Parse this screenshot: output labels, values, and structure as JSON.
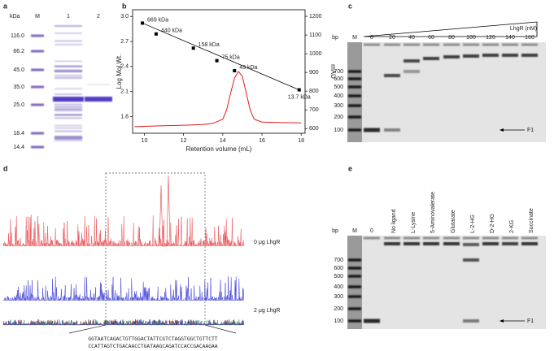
{
  "panels": {
    "a": {
      "label": "a",
      "unit": "kDa",
      "lanes": [
        "M",
        "1",
        "2"
      ],
      "ladder": [
        "116.0",
        "66.2",
        "45.0",
        "35.0",
        "25.0",
        "18.4",
        "14.4"
      ]
    },
    "c": {
      "label": "c",
      "bp": "bp",
      "ladder_lane": "M",
      "titrant": "LhgR (nM)",
      "lanes": [
        "0",
        "20",
        "40",
        "60",
        "80",
        "100",
        "120",
        "140",
        "160"
      ],
      "ladder": [
        "700",
        "600",
        "500",
        "400",
        "300",
        "200",
        "100"
      ],
      "probe": "F1"
    },
    "d": {
      "label": "d",
      "traces": [
        "0 μg LhgR",
        "2 μg LhgR"
      ],
      "sequence_top": "GGTAATCAGACTGTTGGACTATTCGTCTAGGTGGCTGTTCTT",
      "sequence_bottom": "CCATTAGTCTGACAACCTGATAAGCAGATCCACCGACAAGAA"
    },
    "e": {
      "label": "e",
      "bp": "bp",
      "ladder_lane": "M",
      "lanes": [
        "0",
        "No ligand",
        "L-Lysine",
        "5-Aminovalerate",
        "Glutarate",
        "L-2-HG",
        "D-2-HG",
        "2-KG",
        "Succinate"
      ],
      "ladder": [
        "700",
        "600",
        "500",
        "400",
        "300",
        "200",
        "100"
      ],
      "probe": "F1"
    }
  },
  "chart_data": {
    "type": "calibration",
    "label": "b",
    "xlabel": "Retention volume (mL)",
    "ylabel": "Log Mol.Wt.",
    "y2label": "mAU",
    "xlim": [
      9.4,
      18.2
    ],
    "xticks": [
      10,
      12,
      14,
      16,
      18
    ],
    "ylim": [
      1.6,
      3.08
    ],
    "yticks": [
      1.8,
      2.1,
      2.4,
      2.7,
      {
        "value": 3,
        "label": "3.0"
      }
    ],
    "y2lim": [
      575,
      1235
    ],
    "y2ticks": [
      600,
      700,
      800,
      900,
      1000,
      1100,
      1200
    ],
    "points": {
      "x": [
        9.9,
        10.6,
        12.5,
        13.7,
        14.6,
        17.9
      ],
      "y": [
        2.92,
        2.79,
        2.62,
        2.47,
        2.35,
        2.12
      ],
      "labels": [
        "669 kDa",
        "440 kDa",
        "158 kDa",
        "75 kDa",
        "43 kDa",
        "13.7 kDa"
      ],
      "color": "#000000"
    },
    "series": [
      {
        "color": "#e41a1c",
        "axis": "y2",
        "x": [
          9.5,
          10,
          11,
          12,
          13,
          13.5,
          14,
          14.2,
          14.4,
          14.6,
          14.8,
          15,
          15.2,
          15.4,
          15.6,
          16,
          17,
          18
        ],
        "values": [
          610,
          612,
          615,
          618,
          622,
          628,
          650,
          700,
          790,
          870,
          905,
          880,
          790,
          700,
          650,
          635,
          632,
          630
        ]
      }
    ]
  }
}
